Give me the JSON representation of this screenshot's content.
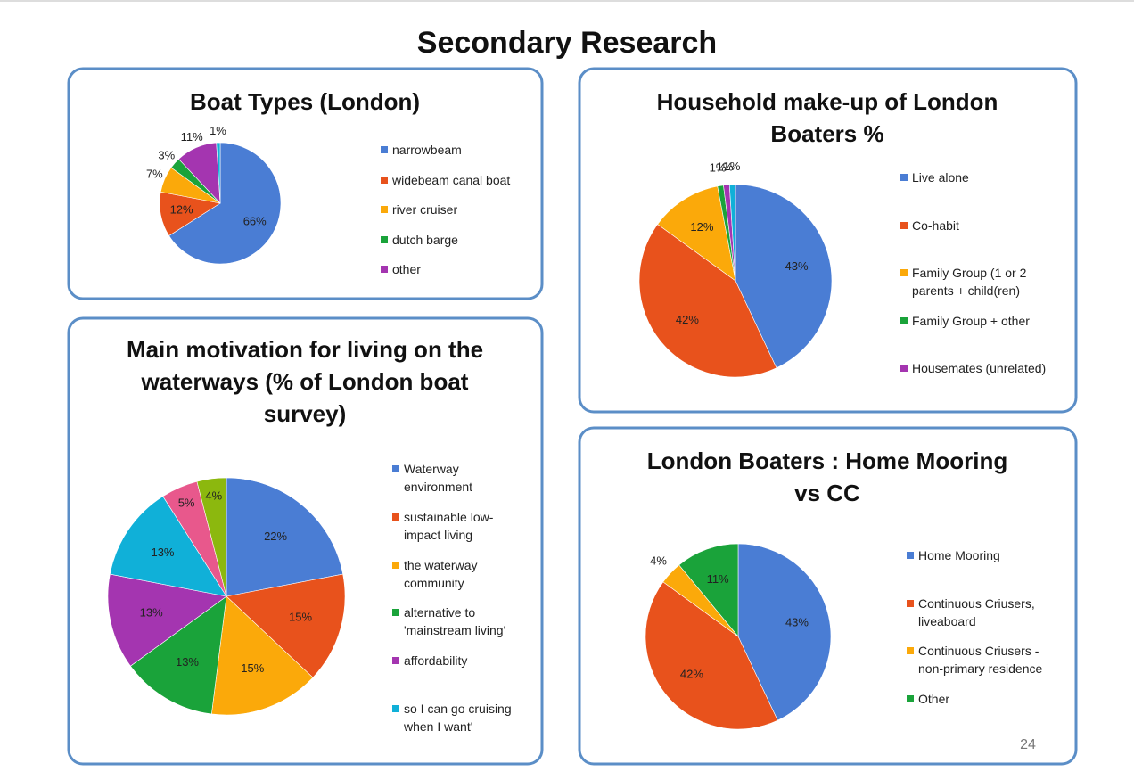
{
  "title": "Secondary Research",
  "page_number": "24",
  "chart_data": [
    {
      "type": "pie",
      "title": "Boat Types (London)",
      "categories": [
        "narrowbeam",
        "widebeam canal boat",
        "river cruiser",
        "dutch barge",
        "other",
        null
      ],
      "values": [
        66,
        12,
        7,
        3,
        11,
        1
      ],
      "value_labels": [
        "66%",
        "12%",
        "7%",
        "3%",
        "11%",
        "1%"
      ],
      "colors": [
        "#4a7dd4",
        "#e8521c",
        "#fba90a",
        "#1aa33a",
        "#a435b0",
        "#10b0d8"
      ]
    },
    {
      "type": "pie",
      "title": "Household make-up of London Boaters %",
      "categories": [
        "Live alone",
        "Co-habit",
        "Family Group (1 or 2 parents + child(ren)",
        "Family Group + other",
        "Housemates (unrelated)",
        null
      ],
      "values": [
        43,
        42,
        12,
        1,
        1,
        1
      ],
      "value_labels": [
        "43%",
        "42%",
        "12%",
        "1%",
        "1%",
        "1%"
      ],
      "colors": [
        "#4a7dd4",
        "#e8521c",
        "#fba90a",
        "#1aa33a",
        "#a435b0",
        "#10b0d8"
      ]
    },
    {
      "type": "pie",
      "title": "Main motivation for living on the waterways (% of London boat survey)",
      "categories": [
        "Waterway environment",
        "sustainable low-impact living",
        "the waterway community",
        "alternative to 'mainstream living'",
        "affordability",
        "so I can go cruising when I want'",
        null,
        null
      ],
      "values": [
        22,
        15,
        15,
        13,
        13,
        13,
        5,
        4
      ],
      "value_labels": [
        "22%",
        "15%",
        "15%",
        "13%",
        "13%",
        "13%",
        "5%",
        "4%"
      ],
      "colors": [
        "#4a7dd4",
        "#e8521c",
        "#fba90a",
        "#1aa33a",
        "#a435b0",
        "#10b0d8",
        "#e8588c",
        "#8cb80e"
      ]
    },
    {
      "type": "pie",
      "title": "London Boaters : Home Mooring vs CC",
      "categories": [
        "Home Mooring",
        "Continuous Criusers, liveaboard",
        "Continuous Criusers - non-primary residence",
        "Other"
      ],
      "values": [
        43,
        42,
        4,
        11
      ],
      "value_labels": [
        "43%",
        "42%",
        "4%",
        "11%"
      ],
      "colors": [
        "#4a7dd4",
        "#e8521c",
        "#fba90a",
        "#1aa33a"
      ]
    }
  ]
}
